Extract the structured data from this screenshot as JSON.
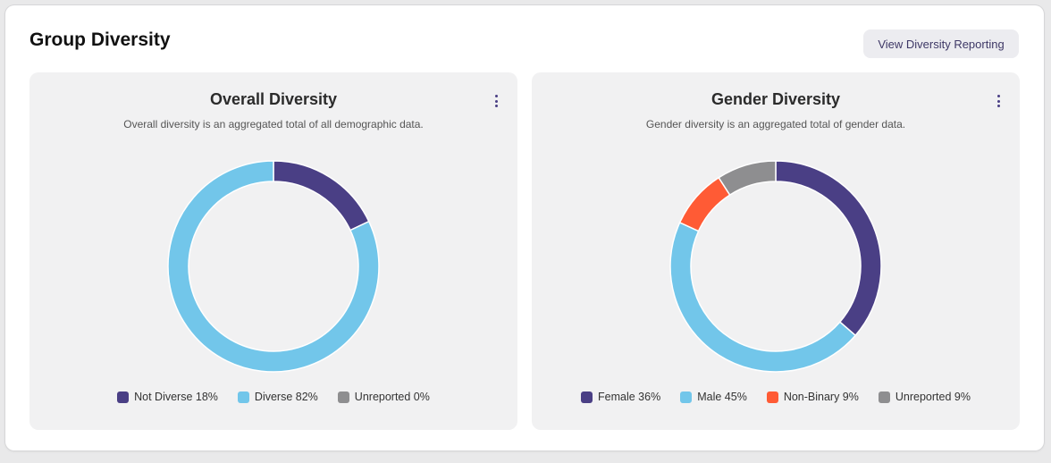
{
  "header": {
    "title": "Group Diversity",
    "report_button": "View Diversity Reporting"
  },
  "chart_data": [
    {
      "type": "pie",
      "donut": true,
      "title": "Overall Diversity",
      "subtitle": "Overall diversity is an aggregated total of all demographic data.",
      "slices": [
        {
          "label": "Not Diverse",
          "value": 18,
          "legend": "Not Diverse 18%",
          "color": "#4a3f85"
        },
        {
          "label": "Diverse",
          "value": 82,
          "legend": "Diverse 82%",
          "color": "#72c6ea"
        },
        {
          "label": "Unreported",
          "value": 0,
          "legend": "Unreported 0%",
          "color": "#8e8e90"
        }
      ],
      "legend_position": "bottom"
    },
    {
      "type": "pie",
      "donut": true,
      "title": "Gender Diversity",
      "subtitle": "Gender diversity is an aggregated total of gender data.",
      "slices": [
        {
          "label": "Female",
          "value": 36,
          "legend": "Female 36%",
          "color": "#4a3f85"
        },
        {
          "label": "Male",
          "value": 45,
          "legend": "Male 45%",
          "color": "#72c6ea"
        },
        {
          "label": "Non-Binary",
          "value": 9,
          "legend": "Non-Binary 9%",
          "color": "#ff5b35"
        },
        {
          "label": "Unreported",
          "value": 9,
          "legend": "Unreported 9%",
          "color": "#8e8e90"
        }
      ],
      "legend_position": "bottom"
    }
  ],
  "icons": {
    "card_menu": "more-vertical-icon"
  }
}
